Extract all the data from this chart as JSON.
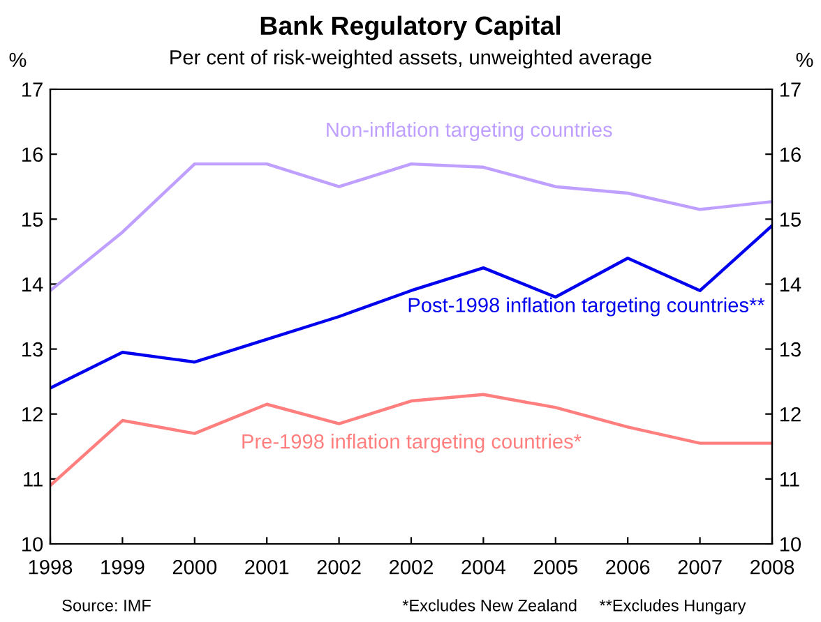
{
  "chart_data": {
    "type": "line",
    "title": "Bank Regulatory Capital",
    "subtitle": "Per cent of risk-weighted assets, unweighted average",
    "ylabel": "%",
    "y2label": "%",
    "categories": [
      "1998",
      "1999",
      "2000",
      "2001",
      "2002",
      "2002",
      "2004",
      "2005",
      "2006",
      "2007",
      "2008"
    ],
    "series": [
      {
        "name": "Non-inflation targeting countries",
        "color": "#bf9fff",
        "values": [
          13.9,
          14.8,
          15.85,
          15.85,
          15.5,
          15.85,
          15.8,
          15.5,
          15.4,
          15.15,
          15.27
        ]
      },
      {
        "name": "Post-1998 inflation targeting countries**",
        "color": "#0000ee",
        "values": [
          12.4,
          12.95,
          12.8,
          13.15,
          13.5,
          13.9,
          14.25,
          13.8,
          14.4,
          13.9,
          14.9
        ]
      },
      {
        "name": "Pre-1998 inflation targeting countries*",
        "color": "#ff7f7f",
        "values": [
          10.9,
          11.9,
          11.7,
          12.15,
          11.85,
          12.2,
          12.3,
          12.1,
          11.8,
          11.55,
          11.55
        ]
      }
    ],
    "ylim": [
      10,
      17
    ],
    "yticks": [
      10,
      11,
      12,
      13,
      14,
      15,
      16,
      17
    ],
    "y2lim": [
      10,
      17
    ],
    "y2ticks": [
      10,
      11,
      12,
      13,
      14,
      15,
      16,
      17
    ],
    "grid": false,
    "legend": false,
    "marker": "none",
    "line_style": "solid",
    "annotations": [
      "Source: IMF",
      "*Excludes New Zealand",
      "**Excludes Hungary"
    ]
  }
}
